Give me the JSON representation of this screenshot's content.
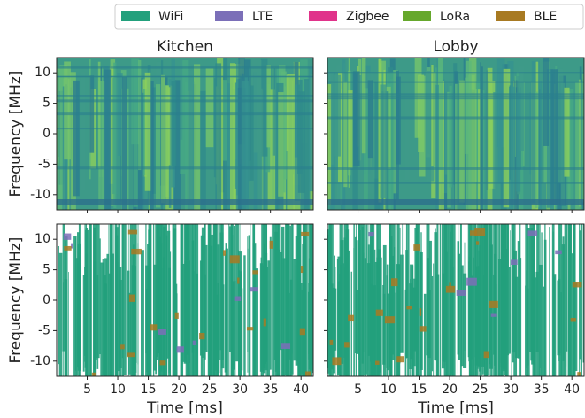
{
  "chart_data": {
    "type": "heatmap",
    "series": [
      {
        "name": "WiFi",
        "color": "#22a07c"
      },
      {
        "name": "LTE",
        "color": "#7b6fb8"
      },
      {
        "name": "Zigbee",
        "color": "#e0338a"
      },
      {
        "name": "LoRa",
        "color": "#66a82c"
      },
      {
        "name": "BLE",
        "color": "#a87a22"
      }
    ],
    "columns": [
      "Kitchen",
      "Lobby"
    ],
    "xlabel": "Time [ms]",
    "ylabel": "Frequency [MHz]",
    "xlim": [
      0,
      42
    ],
    "xticks": [
      5,
      10,
      15,
      20,
      25,
      30,
      35,
      40
    ],
    "ylim": [
      -12.5,
      12.5
    ],
    "yticks": [
      -10,
      -5,
      0,
      5,
      10
    ]
  }
}
